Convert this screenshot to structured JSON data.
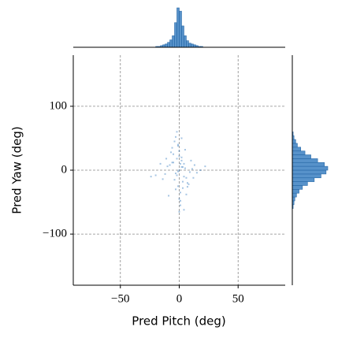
{
  "chart_data": {
    "type": "scatter",
    "xlabel": "Pred Pitch (deg)",
    "ylabel": "Pred Yaw (deg)",
    "x": [
      0,
      1,
      -2,
      3,
      -4,
      2,
      -1,
      5,
      -6,
      4,
      0,
      -3,
      7,
      -8,
      1,
      2,
      -5,
      9,
      -10,
      3,
      -1,
      6,
      -2,
      11,
      -12,
      0,
      4,
      -7,
      8,
      -3,
      2,
      -1,
      13,
      -14,
      5,
      -9,
      10,
      -4,
      1,
      0,
      15,
      -16,
      3,
      -2,
      6,
      -6,
      18,
      -20,
      0,
      2,
      -11,
      12,
      -1,
      1,
      22,
      -24,
      4,
      -3,
      7,
      -5
    ],
    "y": [
      0,
      10,
      -8,
      5,
      -15,
      20,
      -25,
      3,
      12,
      -10,
      30,
      -5,
      -20,
      8,
      -35,
      15,
      25,
      -3,
      6,
      -18,
      40,
      -12,
      18,
      2,
      -6,
      -45,
      10,
      28,
      -22,
      -30,
      50,
      -2,
      8,
      -14,
      32,
      -40,
      15,
      45,
      -55,
      22,
      -4,
      10,
      -28,
      60,
      -38,
      35,
      0,
      -8,
      -65,
      5,
      18,
      -12,
      38,
      -48,
      6,
      -10,
      -62,
      52,
      -26,
      12
    ],
    "color": "#3a7fc1",
    "xlim": [
      -90,
      90
    ],
    "ylim": [
      -180,
      180
    ],
    "xticks": [
      {
        "value": -50,
        "label": "−50"
      },
      0,
      50
    ],
    "yticks": [
      {
        "value": -100,
        "label": "−100"
      },
      0,
      100
    ],
    "grid": true,
    "marginal_x": {
      "type": "histogram",
      "bins": [
        -20,
        -18,
        -16,
        -14,
        -12,
        -10,
        -8,
        -6,
        -4,
        -2,
        0,
        2,
        4,
        6,
        8,
        10,
        12,
        14,
        16,
        18,
        20
      ],
      "counts": [
        1,
        1,
        2,
        3,
        4,
        6,
        9,
        14,
        30,
        48,
        44,
        26,
        14,
        8,
        5,
        4,
        3,
        2,
        1,
        1
      ]
    },
    "marginal_y": {
      "type": "histogram",
      "bins": [
        -60,
        -54,
        -48,
        -42,
        -36,
        -30,
        -24,
        -18,
        -12,
        -6,
        0,
        6,
        12,
        18,
        24,
        30,
        36,
        42,
        48,
        54,
        60
      ],
      "counts": [
        1,
        2,
        3,
        5,
        8,
        12,
        18,
        26,
        34,
        40,
        42,
        38,
        30,
        22,
        15,
        10,
        6,
        4,
        2,
        1
      ]
    }
  }
}
